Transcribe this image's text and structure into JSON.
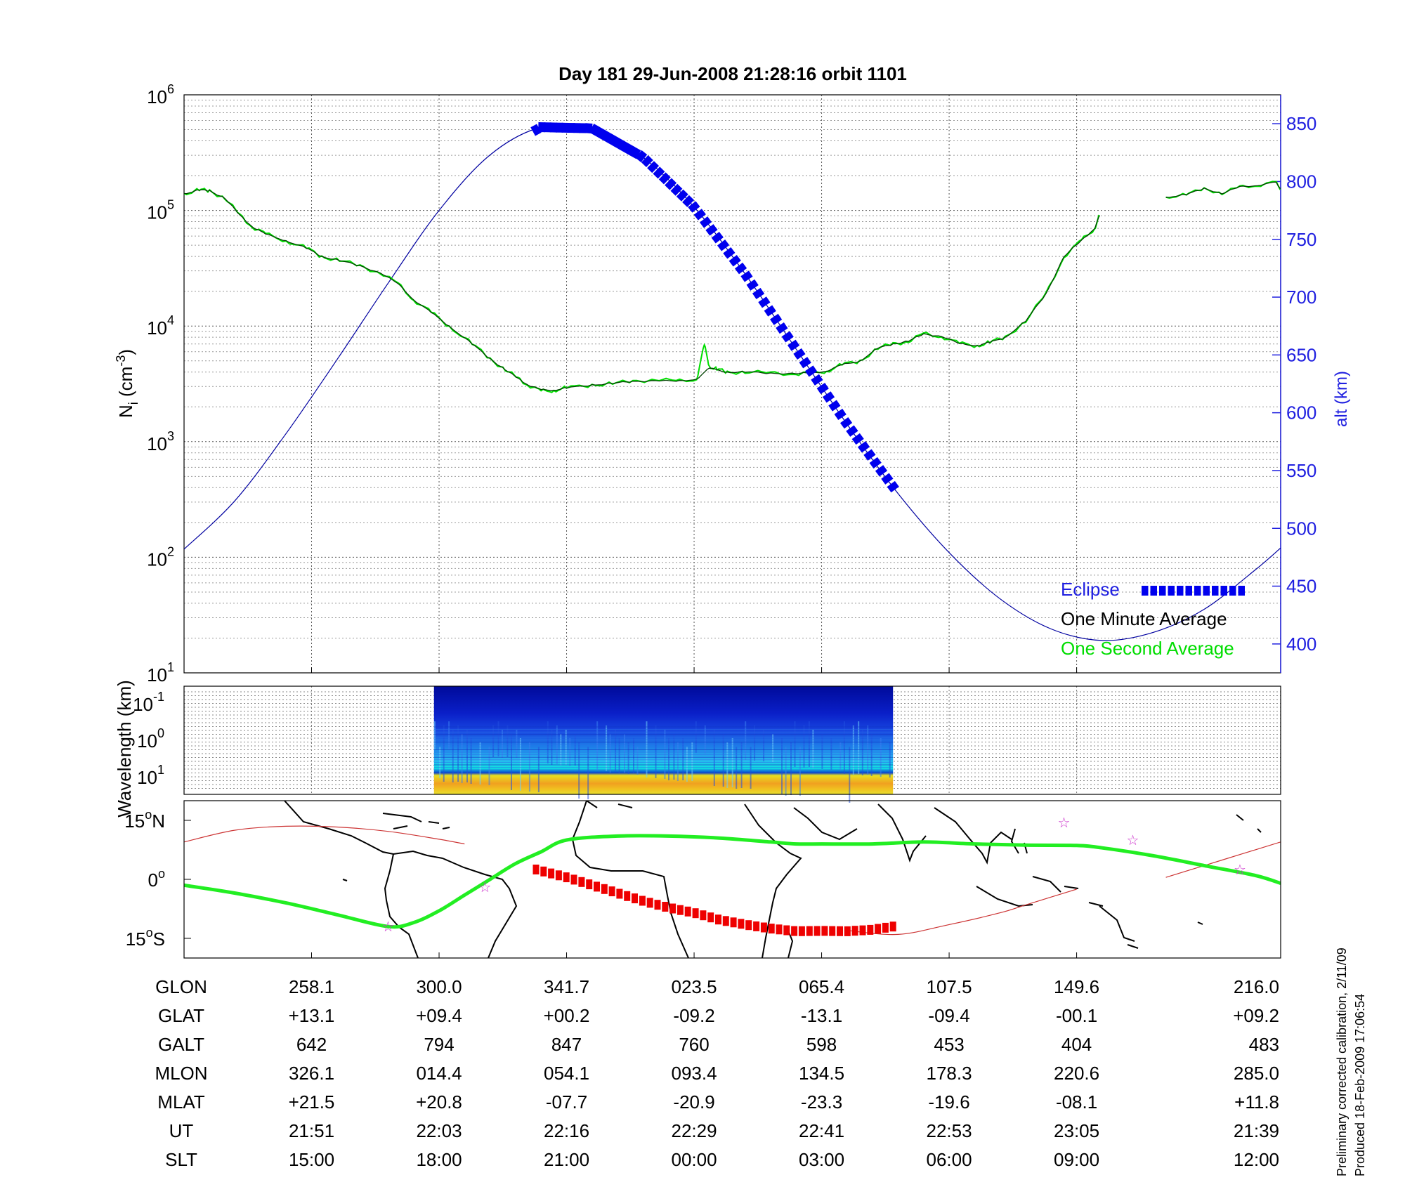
{
  "title": "Day 181  29-Jun-2008 21:28:16   orbit 1101",
  "footer": {
    "line1": "Preliminary corrected calibration, 2/11/09",
    "line2": "Produced 18-Feb-2009 17:06:54"
  },
  "colors": {
    "altitude": "#0000a0",
    "axis_right": "#2020e0",
    "eclipse": "#0000ee",
    "one_minute": "#004000",
    "one_second": "#00dd00",
    "track": "#22ee22",
    "track_eclipse": "#ee0000",
    "orbit_path": "#cc3333",
    "star": "#cc33cc"
  },
  "chart_data": [
    {
      "id": "density",
      "type": "line",
      "ylabel": "N",
      "ylabel_sub": "i",
      "ylabel_unit": "(cm",
      "ylabel_exp": "-3",
      "ylabel_close": ")",
      "yscale": "log",
      "ylim": [
        10,
        1000000
      ],
      "yticks": [
        {
          "value": 10,
          "base": "10",
          "exp": "1"
        },
        {
          "value": 100,
          "base": "10",
          "exp": "2"
        },
        {
          "value": 1000,
          "base": "10",
          "exp": "3"
        },
        {
          "value": 10000,
          "base": "10",
          "exp": "4"
        },
        {
          "value": 100000,
          "base": "10",
          "exp": "5"
        },
        {
          "value": 1000000,
          "base": "10",
          "exp": "6"
        }
      ],
      "xlim": [
        0,
        43
      ],
      "xgrid": [
        5,
        10,
        15,
        20,
        25,
        30,
        35
      ],
      "y2label": "alt (km)",
      "y2lim": [
        375,
        875
      ],
      "y2ticks": [
        400,
        450,
        500,
        550,
        600,
        650,
        700,
        750,
        800,
        850
      ],
      "legend": [
        "Eclipse",
        "One Minute Average",
        "One Second Average"
      ],
      "legend_position": "bottom-right",
      "series": [
        {
          "name": "alt",
          "axis": "right",
          "x": [
            0,
            2,
            4,
            6,
            8,
            10,
            12,
            14,
            16,
            18,
            20,
            22,
            24,
            26,
            28,
            30,
            32,
            34,
            36,
            38,
            40,
            42,
            43
          ],
          "values": [
            482,
            524,
            582,
            646,
            712,
            775,
            823,
            847,
            846,
            821,
            778,
            720,
            655,
            590,
            530,
            479,
            439,
            413,
            403,
            410,
            430,
            464,
            483
          ]
        },
        {
          "name": "One Second Average",
          "axis": "left",
          "x": [
            0,
            0.6,
            1,
            1.6,
            2.2,
            2.7,
            3.2,
            4,
            4.8,
            5.4,
            6.1,
            6.9,
            7.7,
            8.4,
            9,
            9.7,
            10.4,
            11.3,
            12,
            12.6,
            13.1,
            13.5,
            14,
            14.5,
            15,
            16,
            16.8,
            17.6,
            18.5,
            19.3,
            20.1,
            20.4,
            20.6,
            20.9,
            21.3,
            22,
            23,
            24,
            24.6,
            25.2,
            25.8,
            26.5,
            27.2,
            27.8,
            28.4,
            29,
            29.7,
            30.4,
            31.1,
            31.6,
            32.2,
            33,
            33.8,
            34.5,
            35.2,
            35.7,
            35.9
          ],
          "values": [
            140000,
            150000,
            148000,
            128000,
            90000,
            72000,
            62000,
            55000,
            47000,
            40000,
            37000,
            33000,
            29000,
            23000,
            17000,
            13000,
            10000,
            7000,
            5200,
            4200,
            3500,
            3100,
            2700,
            2800,
            2900,
            3100,
            3200,
            3300,
            3500,
            3300,
            3500,
            6800,
            4500,
            4200,
            4000,
            4000,
            3900,
            3900,
            3900,
            4100,
            4600,
            5000,
            6400,
            7000,
            7400,
            8500,
            8200,
            7000,
            6800,
            7200,
            8000,
            11000,
            19000,
            40000,
            55000,
            70000,
            90000
          ]
        },
        {
          "name": "One Second Average",
          "axis": "left",
          "x": [
            38.5,
            39.3,
            40,
            40.7,
            41.4,
            42.1,
            42.8,
            43
          ],
          "values": [
            130000,
            137000,
            155000,
            140000,
            160000,
            165000,
            175000,
            155000
          ]
        },
        {
          "name": "One Minute Average",
          "axis": "left",
          "x": [
            0,
            0.6,
            1,
            1.6,
            2.2,
            2.7,
            3.2,
            4,
            4.8,
            5.4,
            6.1,
            6.9,
            7.7,
            8.4,
            9,
            9.7,
            10.4,
            11.3,
            12,
            12.6,
            13.1,
            13.5,
            14,
            14.5,
            15,
            16,
            16.8,
            17.6,
            18.5,
            19.3,
            20.1,
            20.6,
            21.3,
            22,
            23,
            24,
            24.6,
            25.2,
            25.8,
            26.5,
            27.2,
            27.8,
            28.4,
            29,
            29.7,
            30.4,
            31.1,
            31.6,
            32.2,
            33,
            33.8,
            34.5,
            35.2,
            35.7,
            35.9
          ],
          "values": [
            140000,
            150000,
            148000,
            128000,
            90000,
            72000,
            62000,
            55000,
            47000,
            40000,
            37000,
            33000,
            29000,
            23000,
            17000,
            13000,
            10000,
            7000,
            5200,
            4200,
            3500,
            3100,
            2800,
            2800,
            2900,
            3100,
            3200,
            3300,
            3400,
            3300,
            3500,
            4300,
            4000,
            4000,
            3900,
            3900,
            3900,
            4100,
            4600,
            5000,
            6400,
            7000,
            7400,
            8500,
            8200,
            7000,
            6800,
            7200,
            8000,
            11000,
            19000,
            40000,
            55000,
            70000,
            90000
          ]
        },
        {
          "name": "One Minute Average",
          "axis": "left",
          "x": [
            38.5,
            39.3,
            40,
            40.7,
            41.4,
            42.1,
            42.8,
            43
          ],
          "values": [
            130000,
            137000,
            155000,
            140000,
            160000,
            165000,
            175000,
            155000
          ]
        },
        {
          "name": "Eclipse",
          "axis": "right",
          "x_range": [
            13.8,
            27.8
          ],
          "marker_count": 62
        }
      ]
    },
    {
      "id": "spectrogram",
      "type": "heatmap",
      "ylabel": "Wavelength (km)",
      "yticks": [
        {
          "base": "10",
          "exp": "-1"
        },
        {
          "base": "10",
          "exp": "0"
        },
        {
          "base": "10",
          "exp": "1"
        }
      ],
      "coverage_x": [
        9.8,
        27.8
      ]
    },
    {
      "id": "ground_track",
      "type": "line",
      "ylim": [
        -20,
        20
      ],
      "yticks": [
        {
          "value": 15,
          "label": "15",
          "suffix": "N"
        },
        {
          "value": 0,
          "label": "0",
          "suffix": ""
        },
        {
          "value": -15,
          "label": "15",
          "suffix": "S"
        }
      ],
      "xlim": [
        0,
        43
      ],
      "series": [
        {
          "name": "track",
          "x": [
            0,
            2,
            4,
            6,
            8,
            9,
            10,
            11,
            12,
            13,
            14,
            15,
            17,
            19,
            21,
            23,
            24,
            25,
            27,
            29,
            31,
            33,
            35,
            36,
            38,
            40,
            42,
            43
          ],
          "values": [
            -1.5,
            -3.5,
            -6,
            -9,
            -12,
            -11,
            -8,
            -4,
            0,
            4,
            7,
            10,
            11,
            11,
            10.5,
            9.5,
            9,
            9,
            9,
            9.5,
            9,
            8.7,
            8.6,
            8,
            6,
            3.5,
            1,
            -1
          ]
        },
        {
          "name": "track_eclipse",
          "x": [
            13.8,
            15,
            16,
            17,
            18,
            19,
            20,
            21,
            22,
            23,
            24,
            25,
            26,
            27,
            27.8
          ],
          "values": [
            2.5,
            0.5,
            -1.5,
            -3.5,
            -5.5,
            -7.2,
            -8.5,
            -10.3,
            -11.5,
            -12.5,
            -13.2,
            -13.1,
            -13.2,
            -12.8,
            -12
          ]
        },
        {
          "name": "orbit_path_a",
          "x": [
            0,
            2,
            4,
            6,
            8,
            10,
            11
          ],
          "values": [
            9.5,
            12.5,
            13.5,
            13.3,
            12.2,
            10.2,
            9
          ]
        },
        {
          "name": "orbit_path_b",
          "x": [
            26,
            28,
            30,
            32,
            33,
            34,
            35
          ],
          "values": [
            -13,
            -14,
            -11.5,
            -8.5,
            -6.5,
            -4.5,
            -2.5
          ]
        },
        {
          "name": "orbit_path_c",
          "x": [
            38.5,
            40,
            41.5,
            43
          ],
          "values": [
            0.5,
            3.5,
            6.5,
            9.5
          ]
        }
      ],
      "stars": [
        {
          "x": 8,
          "y": -12
        },
        {
          "x": 11.8,
          "y": -2
        },
        {
          "x": 34.5,
          "y": 14.5
        },
        {
          "x": 37.2,
          "y": 10
        },
        {
          "x": 41.4,
          "y": 2.5
        }
      ]
    }
  ],
  "table": {
    "x_positions": [
      5,
      10,
      15,
      20,
      25,
      30,
      35,
      43
    ],
    "rows": [
      {
        "label": "GLON",
        "values": [
          "258.1",
          "300.0",
          "341.7",
          "023.5",
          "065.4",
          "107.5",
          "149.6",
          "216.0"
        ]
      },
      {
        "label": "GLAT",
        "values": [
          "+13.1",
          "+09.4",
          "+00.2",
          "-09.2",
          "-13.1",
          "-09.4",
          "-00.1",
          "+09.2"
        ]
      },
      {
        "label": "GALT",
        "values": [
          "642",
          "794",
          "847",
          "760",
          "598",
          "453",
          "404",
          "483"
        ]
      },
      {
        "label": "MLON",
        "values": [
          "326.1",
          "014.4",
          "054.1",
          "093.4",
          "134.5",
          "178.3",
          "220.6",
          "285.0"
        ]
      },
      {
        "label": "MLAT",
        "values": [
          "+21.5",
          "+20.8",
          "-07.7",
          "-20.9",
          "-23.3",
          "-19.6",
          "-08.1",
          "+11.8"
        ]
      },
      {
        "label": "UT",
        "values": [
          "21:51",
          "22:03",
          "22:16",
          "22:29",
          "22:41",
          "22:53",
          "23:05",
          "21:39"
        ]
      },
      {
        "label": "SLT",
        "values": [
          "15:00",
          "18:00",
          "21:00",
          "00:00",
          "03:00",
          "06:00",
          "09:00",
          "12:00"
        ]
      }
    ]
  }
}
